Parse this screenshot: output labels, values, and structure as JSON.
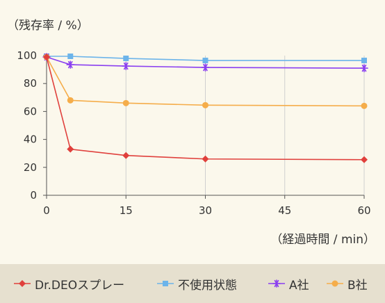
{
  "chart_data": {
    "type": "line",
    "ylabel": "（残存率 / %）",
    "xlabel": "（経過時間 / min）",
    "x_ticks": [
      0,
      15,
      30,
      45,
      60
    ],
    "y_ticks": [
      0,
      20,
      40,
      60,
      80,
      100
    ],
    "xlim": [
      0,
      60
    ],
    "ylim": [
      0,
      100
    ],
    "grid": "vertical",
    "legend_position": "bottom",
    "series": [
      {
        "name": "Dr.DEOスプレー",
        "color": "#e0403c",
        "marker": "diamond",
        "x": [
          0,
          4.5,
          15,
          30,
          60
        ],
        "y": [
          99,
          33,
          28.5,
          26,
          25.5
        ]
      },
      {
        "name": "不使用状態",
        "color": "#6cb4ea",
        "marker": "square",
        "x": [
          0,
          4.5,
          15,
          30,
          60
        ],
        "y": [
          99.5,
          99.5,
          98,
          96.5,
          96.5
        ]
      },
      {
        "name": "A社",
        "color": "#8a3ff0",
        "marker": "asterisk",
        "x": [
          0,
          4.5,
          15,
          30,
          60
        ],
        "y": [
          99,
          93.5,
          92.5,
          91.5,
          91
        ]
      },
      {
        "name": "B社",
        "color": "#f5ad4a",
        "marker": "circle",
        "x": [
          0,
          4.5,
          15,
          30,
          60
        ],
        "y": [
          99,
          68,
          66,
          64.5,
          64
        ]
      }
    ]
  }
}
